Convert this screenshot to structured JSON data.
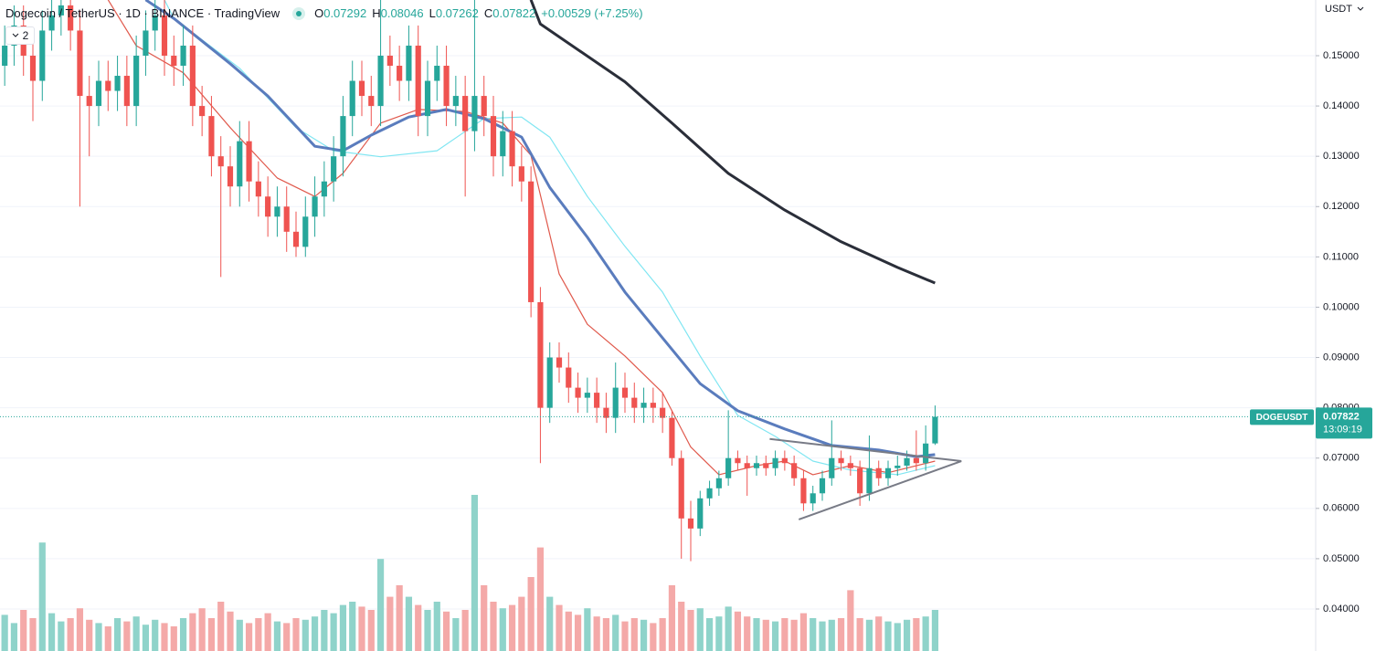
{
  "chart_data": {
    "type": "candlestick",
    "title": "Dogecoin / TetherUS · 1D · BINANCE · TradingView",
    "ohlc_labels": [
      "O",
      "H",
      "L",
      "C"
    ],
    "change": "+0.00529 (+7.25%)",
    "indicator_count": "2",
    "currency": "USDT",
    "symbol": "DOGEUSDT",
    "countdown": "13:09:19",
    "up_color": "#26a69a",
    "down_color": "#ef5350",
    "volume_up_color": "#8fd3ca",
    "volume_down_color": "#f4a9a8",
    "open": [
      0.148,
      0.152,
      0.156,
      0.15,
      0.145,
      0.155,
      0.158,
      0.16,
      0.155,
      0.142,
      0.14,
      0.145,
      0.143,
      0.146,
      0.14,
      0.15,
      0.155,
      0.158,
      0.15,
      0.148,
      0.152,
      0.14,
      0.138,
      0.13,
      0.128,
      0.124,
      0.133,
      0.125,
      0.122,
      0.118,
      0.12,
      0.115,
      0.112,
      0.118,
      0.122,
      0.125,
      0.13,
      0.138,
      0.145,
      0.142,
      0.14,
      0.15,
      0.148,
      0.145,
      0.152,
      0.138,
      0.145,
      0.148,
      0.14,
      0.142,
      0.135,
      0.142,
      0.138,
      0.13,
      0.135,
      0.128,
      0.125,
      0.101,
      0.08,
      0.09,
      0.088,
      0.084,
      0.082,
      0.083,
      0.08,
      0.078,
      0.084,
      0.082,
      0.08,
      0.081,
      0.08,
      0.078,
      0.07,
      0.058,
      0.056,
      0.062,
      0.064,
      0.066,
      0.07,
      0.069,
      0.068,
      0.069,
      0.068,
      0.07,
      0.069,
      0.066,
      0.061,
      0.063,
      0.066,
      0.07,
      0.069,
      0.068,
      0.063,
      0.068,
      0.066,
      0.068,
      0.0685,
      0.07,
      0.069,
      0.07292
    ],
    "high": [
      0.156,
      0.16,
      0.16,
      0.154,
      0.159,
      0.162,
      0.164,
      0.164,
      0.159,
      0.146,
      0.149,
      0.149,
      0.15,
      0.15,
      0.154,
      0.159,
      0.162,
      0.162,
      0.154,
      0.156,
      0.156,
      0.144,
      0.142,
      0.134,
      0.132,
      0.137,
      0.137,
      0.129,
      0.126,
      0.124,
      0.124,
      0.119,
      0.122,
      0.126,
      0.129,
      0.134,
      0.142,
      0.149,
      0.149,
      0.146,
      0.164,
      0.154,
      0.152,
      0.156,
      0.156,
      0.149,
      0.152,
      0.152,
      0.146,
      0.146,
      0.162,
      0.146,
      0.142,
      0.139,
      0.139,
      0.132,
      0.128,
      0.104,
      0.093,
      0.093,
      0.091,
      0.087,
      0.086,
      0.086,
      0.083,
      0.089,
      0.087,
      0.085,
      0.084,
      0.084,
      0.083,
      0.0795,
      0.0715,
      0.0615,
      0.0635,
      0.0655,
      0.0675,
      0.0795,
      0.0715,
      0.0705,
      0.0705,
      0.0705,
      0.0715,
      0.0715,
      0.0705,
      0.0675,
      0.0645,
      0.0675,
      0.0775,
      0.0715,
      0.0705,
      0.0695,
      0.0745,
      0.0695,
      0.0695,
      0.0705,
      0.0715,
      0.0755,
      0.0765,
      0.08046
    ],
    "low": [
      0.144,
      0.148,
      0.146,
      0.137,
      0.141,
      0.151,
      0.154,
      0.151,
      0.12,
      0.13,
      0.136,
      0.139,
      0.139,
      0.136,
      0.136,
      0.146,
      0.151,
      0.146,
      0.144,
      0.144,
      0.136,
      0.134,
      0.126,
      0.106,
      0.12,
      0.12,
      0.121,
      0.118,
      0.114,
      0.114,
      0.111,
      0.11,
      0.11,
      0.114,
      0.118,
      0.121,
      0.126,
      0.134,
      0.138,
      0.136,
      0.136,
      0.144,
      0.141,
      0.141,
      0.134,
      0.134,
      0.141,
      0.136,
      0.136,
      0.122,
      0.131,
      0.134,
      0.126,
      0.126,
      0.124,
      0.121,
      0.098,
      0.069,
      0.077,
      0.085,
      0.081,
      0.079,
      0.079,
      0.077,
      0.075,
      0.075,
      0.079,
      0.077,
      0.077,
      0.077,
      0.075,
      0.0685,
      0.05,
      0.0495,
      0.0545,
      0.0605,
      0.0625,
      0.0645,
      0.0675,
      0.0625,
      0.0665,
      0.0665,
      0.0665,
      0.0675,
      0.0645,
      0.0595,
      0.0595,
      0.0615,
      0.0645,
      0.0675,
      0.0665,
      0.0605,
      0.0615,
      0.0645,
      0.0645,
      0.0665,
      0.0675,
      0.0675,
      0.0675,
      0.07262
    ],
    "close": [
      0.152,
      0.156,
      0.15,
      0.145,
      0.155,
      0.158,
      0.16,
      0.155,
      0.142,
      0.14,
      0.145,
      0.143,
      0.146,
      0.14,
      0.15,
      0.155,
      0.158,
      0.15,
      0.148,
      0.152,
      0.14,
      0.138,
      0.13,
      0.128,
      0.124,
      0.133,
      0.125,
      0.122,
      0.118,
      0.12,
      0.115,
      0.112,
      0.118,
      0.122,
      0.125,
      0.13,
      0.138,
      0.145,
      0.142,
      0.14,
      0.15,
      0.148,
      0.145,
      0.152,
      0.138,
      0.145,
      0.148,
      0.14,
      0.142,
      0.135,
      0.142,
      0.138,
      0.13,
      0.135,
      0.128,
      0.125,
      0.101,
      0.08,
      0.09,
      0.088,
      0.084,
      0.082,
      0.083,
      0.08,
      0.078,
      0.084,
      0.082,
      0.08,
      0.081,
      0.08,
      0.078,
      0.07,
      0.058,
      0.056,
      0.062,
      0.064,
      0.066,
      0.07,
      0.069,
      0.068,
      0.069,
      0.068,
      0.07,
      0.069,
      0.066,
      0.061,
      0.063,
      0.066,
      0.07,
      0.069,
      0.068,
      0.063,
      0.068,
      0.066,
      0.068,
      0.0685,
      0.07,
      0.069,
      0.0729,
      0.07822
    ],
    "volume": [
      220,
      170,
      250,
      200,
      660,
      230,
      180,
      200,
      260,
      190,
      170,
      150,
      200,
      180,
      210,
      160,
      190,
      170,
      150,
      200,
      230,
      260,
      200,
      300,
      240,
      190,
      170,
      200,
      230,
      180,
      170,
      200,
      190,
      210,
      250,
      230,
      280,
      300,
      270,
      250,
      560,
      330,
      400,
      330,
      280,
      250,
      300,
      240,
      200,
      250,
      950,
      400,
      300,
      260,
      280,
      330,
      450,
      630,
      330,
      280,
      240,
      220,
      260,
      210,
      200,
      220,
      180,
      200,
      190,
      170,
      200,
      400,
      300,
      250,
      260,
      200,
      210,
      270,
      240,
      210,
      200,
      190,
      180,
      200,
      190,
      230,
      200,
      180,
      190,
      200,
      370,
      200,
      190,
      210,
      180,
      170,
      190,
      200,
      210,
      250
    ],
    "volume_lim": [
      0,
      1000
    ],
    "series": [
      {
        "color": "#e0594c",
        "width": 1.2,
        "x": [
          11,
          14,
          19,
          24,
          29,
          33,
          36,
          40,
          44,
          49,
          53,
          56,
          59,
          62,
          66,
          70,
          73,
          76,
          80,
          83,
          86,
          90,
          94,
          99
        ],
        "values": [
          0.1611,
          0.152,
          0.1466,
          0.1357,
          0.1257,
          0.122,
          0.1266,
          0.1366,
          0.1393,
          0.1389,
          0.1366,
          0.1302,
          0.1066,
          0.0966,
          0.0903,
          0.083,
          0.0722,
          0.0667,
          0.0685,
          0.0694,
          0.0667,
          0.0685,
          0.0671,
          0.0694
        ]
      },
      {
        "color": "#80e6f2",
        "width": 1.2,
        "x": [
          17,
          18,
          25,
          31,
          35,
          40,
          46,
          51,
          55,
          58,
          62,
          66,
          70,
          74,
          78,
          82,
          86,
          90,
          95,
          99
        ],
        "values": [
          0.1611,
          0.1574,
          0.1475,
          0.1357,
          0.1311,
          0.1299,
          0.1311,
          0.1375,
          0.1378,
          0.1338,
          0.122,
          0.1121,
          0.103,
          0.0903,
          0.0785,
          0.0743,
          0.0694,
          0.0676,
          0.0667,
          0.0685
        ]
      },
      {
        "color": "#5a7cbd",
        "width": 3,
        "x": [
          15,
          18,
          24,
          28,
          33,
          36,
          39,
          43,
          47,
          51,
          55,
          58,
          62,
          66,
          70,
          74,
          78,
          83,
          88,
          93,
          97,
          99
        ],
        "values": [
          0.1611,
          0.1574,
          0.1484,
          0.142,
          0.132,
          0.1311,
          0.1342,
          0.1378,
          0.1393,
          0.1375,
          0.1338,
          0.1238,
          0.1139,
          0.103,
          0.0939,
          0.0848,
          0.0794,
          0.0758,
          0.0725,
          0.0716,
          0.0703,
          0.0707
        ]
      },
      {
        "color": "#2a2e39",
        "width": 3,
        "x": [
          56,
          57,
          66,
          71,
          77,
          83,
          89,
          95,
          99
        ],
        "values": [
          0.1611,
          0.1563,
          0.1448,
          0.1366,
          0.1266,
          0.1193,
          0.113,
          0.1079,
          0.1048
        ]
      }
    ],
    "trendlines": [
      {
        "color": "#787b86",
        "x": [
          81.4,
          101.8
        ],
        "values": [
          0.0738,
          0.0694
        ]
      },
      {
        "color": "#787b86",
        "x": [
          84.5,
          101.8
        ],
        "values": [
          0.0578,
          0.0694
        ]
      }
    ],
    "xlim": [
      -0.5,
      139.5
    ],
    "ylim": [
      0.03165,
      0.16107
    ],
    "yticks": [
      {
        "value": 0.04,
        "label": "0.04000"
      },
      {
        "value": 0.05,
        "label": "0.05000"
      },
      {
        "value": 0.06,
        "label": "0.06000"
      },
      {
        "value": 0.07,
        "label": "0.07000"
      },
      {
        "value": 0.08,
        "label": "0.08000"
      },
      {
        "value": 0.09,
        "label": "0.09000"
      },
      {
        "value": 0.1,
        "label": "0.10000"
      },
      {
        "value": 0.11,
        "label": "0.11000"
      },
      {
        "value": 0.12,
        "label": "0.12000"
      },
      {
        "value": 0.13,
        "label": "0.13000"
      },
      {
        "value": 0.14,
        "label": "0.14000"
      },
      {
        "value": 0.15,
        "label": "0.15000"
      }
    ],
    "grid": true
  }
}
